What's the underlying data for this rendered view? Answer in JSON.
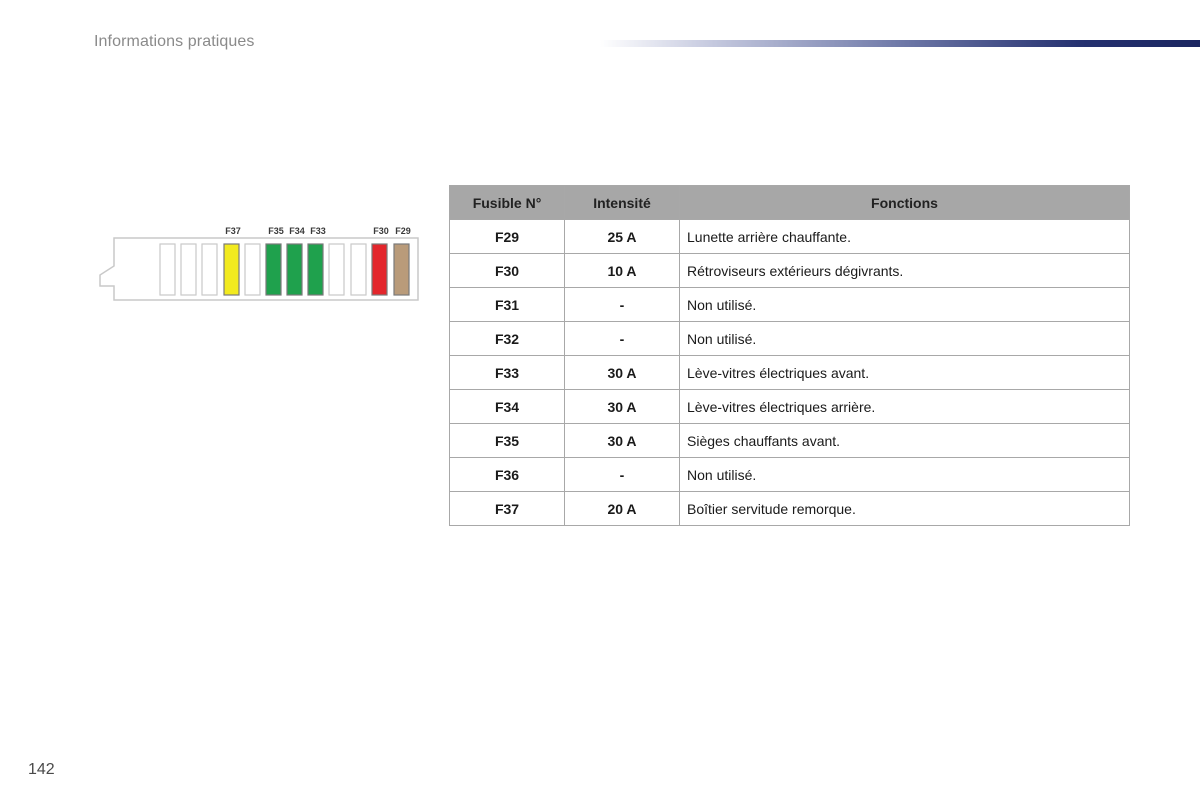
{
  "header": {
    "section_title": "Informations pratiques"
  },
  "page_number": "142",
  "diagram": {
    "labels": [
      {
        "id": "f37",
        "text": "F37"
      },
      {
        "id": "f35",
        "text": "F35"
      },
      {
        "id": "f34",
        "text": "F34"
      },
      {
        "id": "f33",
        "text": "F33"
      },
      {
        "id": "f30",
        "text": "F30"
      },
      {
        "id": "f29",
        "text": "F29"
      }
    ],
    "colors": {
      "empty": "#ffffff",
      "yellow": "#f2ea1f",
      "green": "#1fa14d",
      "red": "#e3262c",
      "tan": "#b99b7a",
      "outline": "#c9c9c9"
    }
  },
  "table": {
    "headers": {
      "fuse": "Fusible N°",
      "intensity": "Intensité",
      "functions": "Fonctions"
    },
    "rows": [
      {
        "fuse": "F29",
        "intensity": "25 A",
        "function": "Lunette arrière chauffante."
      },
      {
        "fuse": "F30",
        "intensity": "10 A",
        "function": "Rétroviseurs extérieurs dégivrants."
      },
      {
        "fuse": "F31",
        "intensity": "-",
        "function": "Non utilisé."
      },
      {
        "fuse": "F32",
        "intensity": "-",
        "function": "Non utilisé."
      },
      {
        "fuse": "F33",
        "intensity": "30 A",
        "function": "Lève-vitres électriques avant."
      },
      {
        "fuse": "F34",
        "intensity": "30 A",
        "function": "Lève-vitres électriques arrière."
      },
      {
        "fuse": "F35",
        "intensity": "30 A",
        "function": "Sièges chauffants avant."
      },
      {
        "fuse": "F36",
        "intensity": "-",
        "function": "Non utilisé."
      },
      {
        "fuse": "F37",
        "intensity": "20 A",
        "function": "Boîtier servitude remorque."
      }
    ]
  }
}
